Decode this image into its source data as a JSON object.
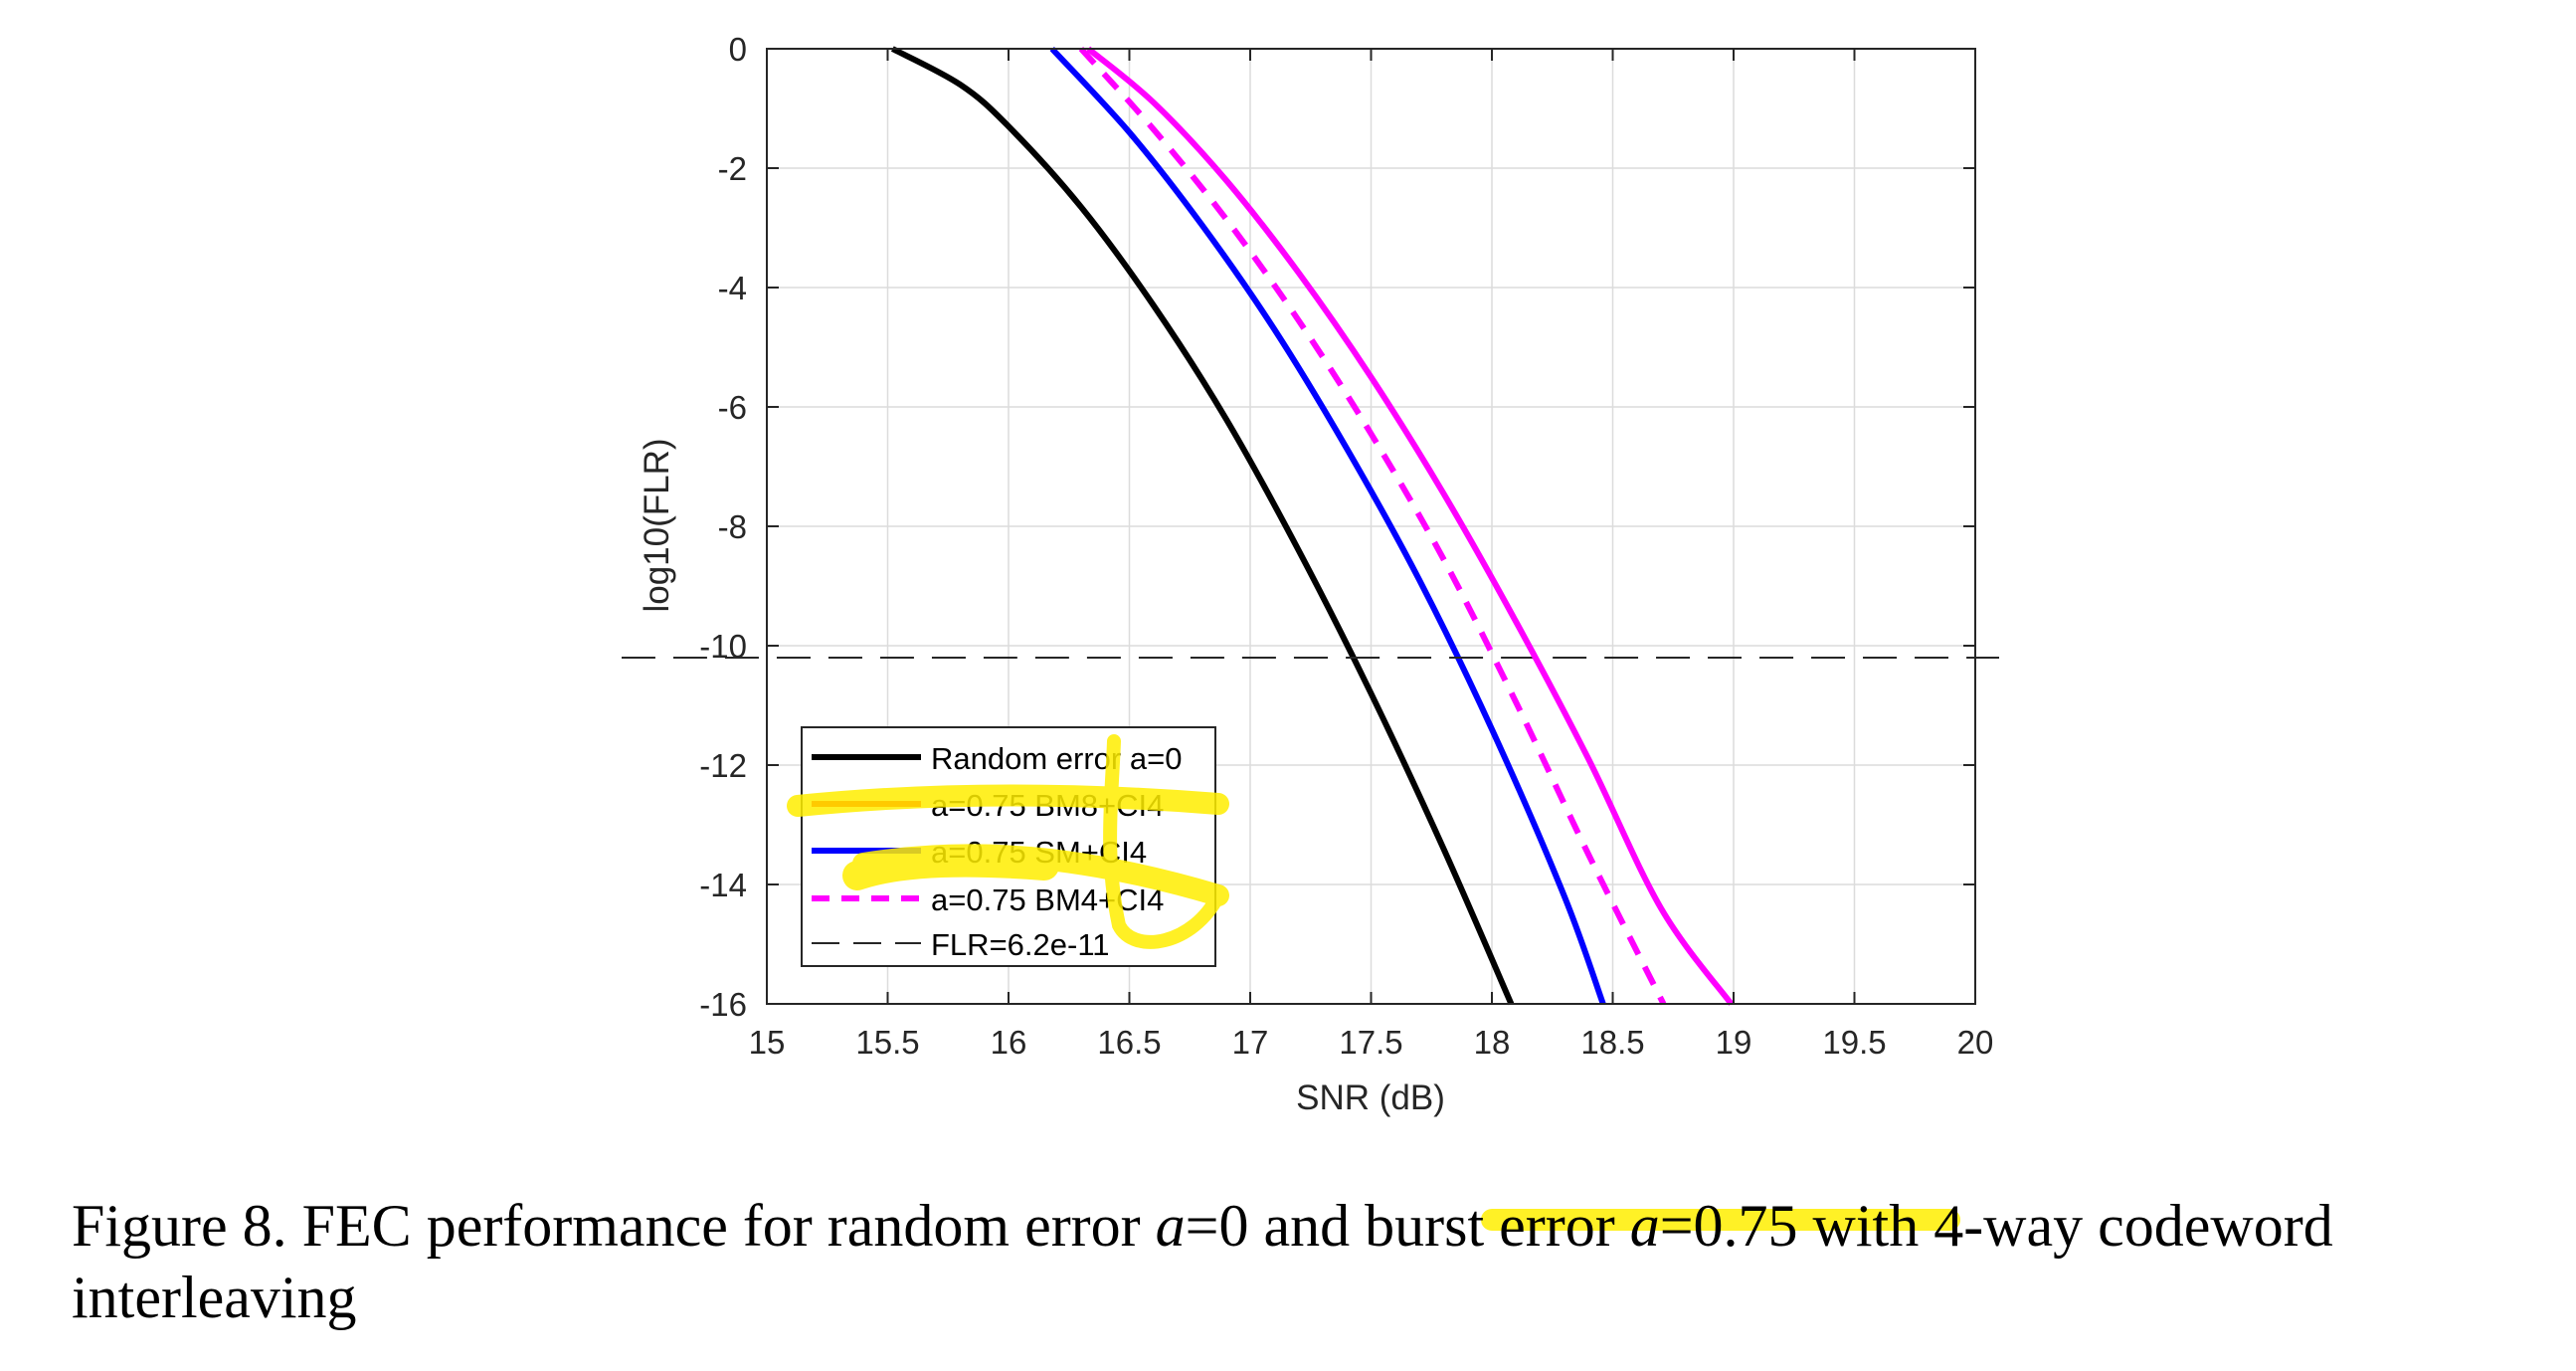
{
  "chart_data": {
    "type": "line",
    "title": "",
    "xlabel": "SNR (dB)",
    "ylabel": "log10(FLR)",
    "xlim": [
      15,
      20
    ],
    "ylim": [
      -16,
      0
    ],
    "xticks": [
      15,
      15.5,
      16,
      16.5,
      17,
      17.5,
      18,
      18.5,
      19,
      19.5,
      20
    ],
    "xtick_labels": [
      "15",
      "15.5",
      "16",
      "16.5",
      "17",
      "17.5",
      "18",
      "18.5",
      "19",
      "19.5",
      "20"
    ],
    "yticks": [
      0,
      -2,
      -4,
      -6,
      -8,
      -10,
      -12,
      -14,
      -16
    ],
    "ytick_labels": [
      "0",
      "-2",
      "-4",
      "-6",
      "-8",
      "-10",
      "-12",
      "-14",
      "-16"
    ],
    "grid": true,
    "legend_position": "bottom-left",
    "series": [
      {
        "name": "Random error a=0",
        "color": "#000000",
        "style": "solid",
        "x": [
          15.52,
          15.8,
          16.0,
          16.3,
          16.6,
          16.9,
          17.2,
          17.5,
          17.8,
          18.08
        ],
        "y": [
          0,
          -0.6,
          -1.3,
          -2.65,
          -4.3,
          -6.2,
          -8.4,
          -10.8,
          -13.4,
          -16
        ]
      },
      {
        "name": "a=0.75 BM8+CI4",
        "color": "#ff0000",
        "style": "solid",
        "x": [],
        "y": []
      },
      {
        "name": "a=0.75 SM+CI4",
        "color": "#0000ff",
        "style": "solid",
        "x": [
          16.18,
          16.5,
          16.8,
          17.1,
          17.4,
          17.7,
          18.0,
          18.3,
          18.46
        ],
        "y": [
          0,
          -1.4,
          -2.95,
          -4.7,
          -6.7,
          -8.9,
          -11.4,
          -14.2,
          -16
        ]
      },
      {
        "name": "a=0.75 BM4+CI4",
        "color": "#ff00ff",
        "style": "dashed",
        "x": [
          16.3,
          16.6,
          16.9,
          17.2,
          17.5,
          17.8,
          18.1,
          18.4,
          18.71
        ],
        "y": [
          0,
          -1.35,
          -2.85,
          -4.55,
          -6.45,
          -8.55,
          -10.95,
          -13.5,
          -16
        ]
      },
      {
        "name": "FLR=6.2e-11",
        "color": "#262626",
        "style": "dash-long",
        "x": [
          15,
          20
        ],
        "y": [
          -10.2,
          -10.2
        ]
      },
      {
        "name": "",
        "color": "#ff00ff",
        "style": "solid",
        "x": [
          16.33,
          16.6,
          16.9,
          17.2,
          17.5,
          17.8,
          18.1,
          18.4,
          18.7,
          18.99
        ],
        "y": [
          0,
          -0.9,
          -2.2,
          -3.75,
          -5.5,
          -7.45,
          -9.6,
          -11.9,
          -14.4,
          -16
        ]
      }
    ]
  },
  "caption": {
    "part1": "Figure 8. FEC performance for random error ",
    "var1": "a",
    "part2": "=0 and burst error ",
    "var2": "a",
    "part3": "=0.75 with 4-way codeword interleaving"
  }
}
